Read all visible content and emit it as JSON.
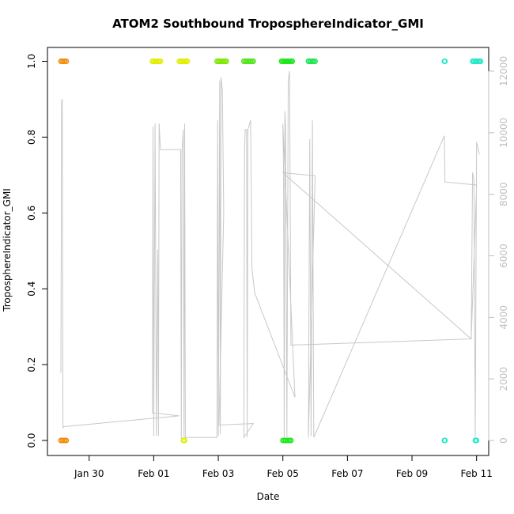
{
  "chart_data": {
    "type": "scatter",
    "title": "ATOM2 Southbound TroposphereIndicator_GMI",
    "xlabel": "Date",
    "ylabel": "TroposphereIndicator_GMI",
    "x_unit": "date",
    "xlim": [
      "2016-01-28T17:00",
      "2016-02-11T09:00"
    ],
    "ylim": [
      0,
      1
    ],
    "y2lim": [
      0,
      12200
    ],
    "x_ticks": [
      {
        "date": "2016-01-30",
        "label": "Jan 30"
      },
      {
        "date": "2016-02-01",
        "label": "Feb 01"
      },
      {
        "date": "2016-02-03",
        "label": "Feb 03"
      },
      {
        "date": "2016-02-05",
        "label": "Feb 05"
      },
      {
        "date": "2016-02-07",
        "label": "Feb 07"
      },
      {
        "date": "2016-02-09",
        "label": "Feb 09"
      },
      {
        "date": "2016-02-11",
        "label": "Feb 11"
      }
    ],
    "y_ticks": [
      {
        "value": 0,
        "label": "0.0"
      },
      {
        "value": 0.2,
        "label": "0.2"
      },
      {
        "value": 0.4,
        "label": "0.4"
      },
      {
        "value": 0.6,
        "label": "0.6"
      },
      {
        "value": 0.8,
        "label": "0.8"
      },
      {
        "value": 1,
        "label": "1.0"
      }
    ],
    "y2_ticks": [
      {
        "value": 0,
        "label": "0"
      },
      {
        "value": 2000,
        "label": "2000"
      },
      {
        "value": 4000,
        "label": "4000"
      },
      {
        "value": 6000,
        "label": "6000"
      },
      {
        "value": 8000,
        "label": "8000"
      },
      {
        "value": 10000,
        "label": "10000"
      },
      {
        "value": 12000,
        "label": "12000"
      }
    ],
    "grid": false,
    "point_groups": [
      {
        "color": "#f28c0e",
        "y": 1,
        "x_start": "2016-01-29T03:00",
        "x_end": "2016-01-29T07:00"
      },
      {
        "color": "#f28c0e",
        "y": 0,
        "x_start": "2016-01-29T03:00",
        "x_end": "2016-01-29T07:00"
      },
      {
        "color": "#e0ee00",
        "y": 1,
        "x_start": "2016-01-31T23:00",
        "x_end": "2016-02-01T05:00"
      },
      {
        "color": "#e0ee00",
        "y": 1,
        "x_start": "2016-02-01T19:00",
        "x_end": "2016-02-02T01:00"
      },
      {
        "color": "#e0ee00",
        "y": 0,
        "x_start": "2016-02-01T22:00",
        "x_end": "2016-02-01T23:00"
      },
      {
        "color": "#7ee600",
        "y": 1,
        "x_start": "2016-02-02T23:00",
        "x_end": "2016-02-03T06:00"
      },
      {
        "color": "#4ee616",
        "y": 1,
        "x_start": "2016-02-03T19:00",
        "x_end": "2016-02-04T02:00"
      },
      {
        "color": "#20e620",
        "y": 1,
        "x_start": "2016-02-04T23:00",
        "x_end": "2016-02-05T07:00"
      },
      {
        "color": "#20e620",
        "y": 0,
        "x_start": "2016-02-05T00:00",
        "x_end": "2016-02-05T06:00"
      },
      {
        "color": "#1ee650",
        "y": 1,
        "x_start": "2016-02-05T19:00",
        "x_end": "2016-02-06T00:00"
      },
      {
        "color": "#20e8c6",
        "y": 1,
        "x_start": "2016-02-10T00:00",
        "x_end": "2016-02-10T00:30"
      },
      {
        "color": "#20e8c6",
        "y": 0,
        "x_start": "2016-02-10T00:00",
        "x_end": "2016-02-10T00:30"
      },
      {
        "color": "#20e8c6",
        "y": 1,
        "x_start": "2016-02-10T21:00",
        "x_end": "2016-02-11T03:00"
      },
      {
        "color": "#20e8c6",
        "y": 0,
        "x_start": "2016-02-10T23:00",
        "x_end": "2016-02-11T00:00"
      }
    ],
    "altitude_series": {
      "color": "#c8c8c8",
      "axis": "right",
      "points": [
        [
          "2016-01-29T03:00",
          2200
        ],
        [
          "2016-01-29T03:30",
          11000
        ],
        [
          "2016-01-29T04:00",
          11100
        ],
        [
          "2016-01-29T04:30",
          400
        ],
        [
          "2016-01-29T05:00",
          450
        ],
        [
          "2016-02-01T19:00",
          800
        ],
        [
          "2016-01-31T23:00",
          900
        ],
        [
          "2016-01-31T23:30",
          10200
        ],
        [
          "2016-02-01T00:00",
          150
        ],
        [
          "2016-02-01T01:00",
          10300
        ],
        [
          "2016-02-01T02:00",
          150
        ],
        [
          "2016-02-01T03:00",
          6200
        ],
        [
          "2016-02-01T03:30",
          150
        ],
        [
          "2016-02-01T04:00",
          10300
        ],
        [
          "2016-02-01T05:00",
          9450
        ],
        [
          "2016-02-01T20:00",
          9450
        ],
        [
          "2016-02-01T20:30",
          50
        ],
        [
          "2016-02-01T21:00",
          9400
        ],
        [
          "2016-02-01T22:00",
          10100
        ],
        [
          "2016-02-01T22:30",
          50
        ],
        [
          "2016-02-01T23:00",
          10300
        ],
        [
          "2016-02-01T23:30",
          50
        ],
        [
          "2016-02-02T00:00",
          100
        ],
        [
          "2016-02-02T23:00",
          100
        ],
        [
          "2016-02-02T23:30",
          10400
        ],
        [
          "2016-02-03T00:00",
          150
        ],
        [
          "2016-02-03T01:00",
          11700
        ],
        [
          "2016-02-03T01:30",
          200
        ],
        [
          "2016-02-03T02:00",
          11800
        ],
        [
          "2016-02-03T03:00",
          11400
        ],
        [
          "2016-02-03T04:00",
          7400
        ],
        [
          "2016-02-03T00:30",
          500
        ],
        [
          "2016-02-04T02:00",
          550
        ],
        [
          "2016-02-03T19:00",
          100
        ],
        [
          "2016-02-03T19:30",
          9400
        ],
        [
          "2016-02-03T20:00",
          10100
        ],
        [
          "2016-02-03T21:00",
          10100
        ],
        [
          "2016-02-03T21:30",
          100
        ],
        [
          "2016-02-03T22:00",
          10100
        ],
        [
          "2016-02-04T00:00",
          10400
        ],
        [
          "2016-02-04T01:00",
          5600
        ],
        [
          "2016-02-04T03:00",
          4800
        ],
        [
          "2016-02-05T09:00",
          1400
        ],
        [
          "2016-02-05T00:00",
          10300
        ],
        [
          "2016-02-05T00:30",
          8700
        ],
        [
          "2016-02-05T01:00",
          100
        ],
        [
          "2016-02-05T01:30",
          10700
        ],
        [
          "2016-02-05T02:00",
          10200
        ],
        [
          "2016-02-05T03:00",
          100
        ],
        [
          "2016-02-05T04:00",
          11700
        ],
        [
          "2016-02-05T05:00",
          12000
        ],
        [
          "2016-02-05T06:00",
          3100
        ],
        [
          "2016-02-10T20:00",
          3300
        ],
        [
          "2016-02-05T00:00",
          8700
        ],
        [
          "2016-02-06T00:00",
          8600
        ],
        [
          "2016-02-05T19:00",
          100
        ],
        [
          "2016-02-05T20:00",
          9800
        ],
        [
          "2016-02-05T21:00",
          150
        ],
        [
          "2016-02-05T22:00",
          10400
        ],
        [
          "2016-02-05T23:00",
          100
        ],
        [
          "2016-02-10T00:00",
          9900
        ],
        [
          "2016-02-10T00:30",
          8400
        ],
        [
          "2016-02-11T00:00",
          8300
        ],
        [
          "2016-02-10T20:00",
          3300
        ],
        [
          "2016-02-10T21:00",
          8700
        ],
        [
          "2016-02-10T22:00",
          8500
        ],
        [
          "2016-02-10T23:00",
          100
        ],
        [
          "2016-02-11T00:00",
          9700
        ],
        [
          "2016-02-11T02:00",
          9300
        ]
      ]
    }
  }
}
